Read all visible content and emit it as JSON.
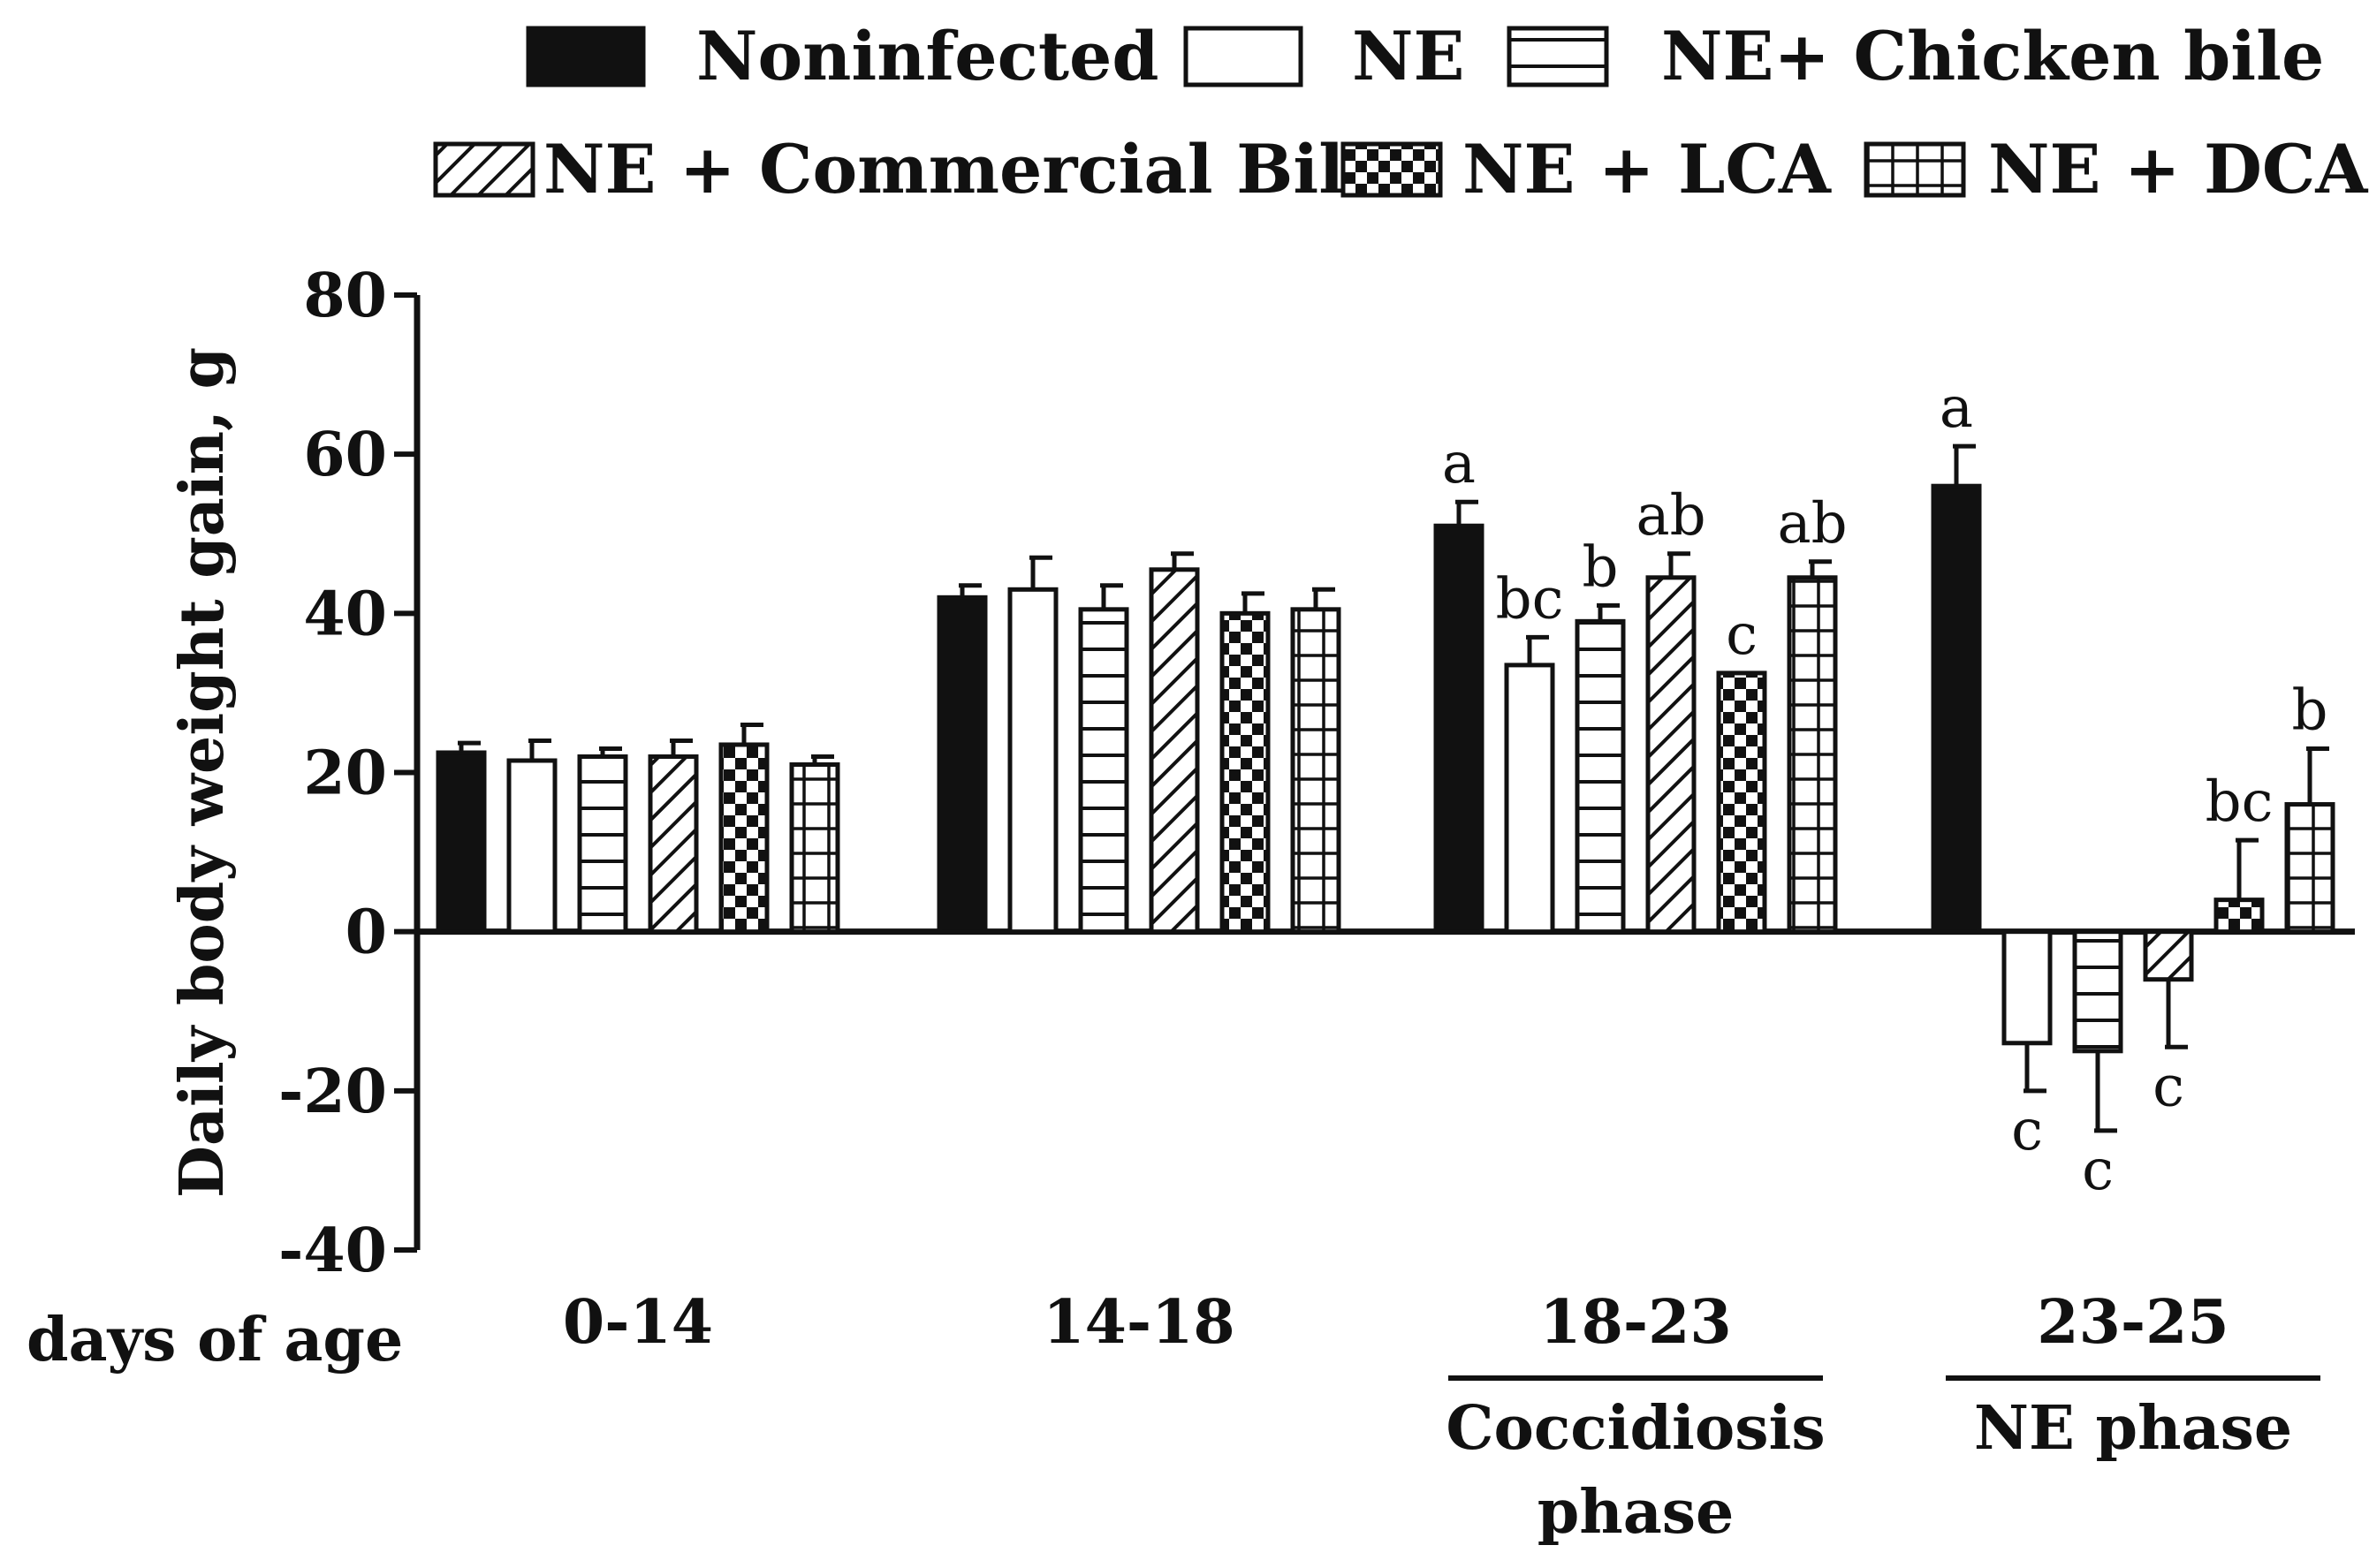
{
  "chart_data": {
    "type": "bar",
    "ylabel": "Daily body weight gain, g",
    "xaxis_title": "days of age",
    "ylim": [
      -40,
      80
    ],
    "yticks": [
      -40,
      -20,
      0,
      20,
      40,
      60,
      80
    ],
    "grid": false,
    "legend_position": "top",
    "categories": [
      "0-14",
      "14-18",
      "18-23",
      "23-25"
    ],
    "phase_labels": [
      "",
      "",
      "Coccidiosis phase",
      "NE phase"
    ],
    "series": [
      {
        "name": "Noninfected",
        "pattern": "solid",
        "values": [
          22.5,
          42,
          51,
          56
        ],
        "errors": [
          1.2,
          1.5,
          3,
          5
        ],
        "sig": [
          "",
          "",
          "a",
          "a"
        ]
      },
      {
        "name": "NE",
        "pattern": "empty",
        "values": [
          21.5,
          43,
          33.5,
          -14
        ],
        "errors": [
          2.5,
          4,
          3.5,
          6
        ],
        "sig": [
          "",
          "",
          "bc",
          "c"
        ]
      },
      {
        "name": "NE+ Chicken bile",
        "pattern": "hlines",
        "values": [
          22,
          40.5,
          39,
          -15
        ],
        "errors": [
          1,
          3,
          2,
          10
        ],
        "sig": [
          "",
          "",
          "b",
          "c"
        ]
      },
      {
        "name": "NE + Commercial Bile",
        "pattern": "diag",
        "values": [
          22,
          45.5,
          44.5,
          -6
        ],
        "errors": [
          2,
          2,
          3,
          8.5
        ],
        "sig": [
          "",
          "",
          "ab",
          "c"
        ]
      },
      {
        "name": "NE + LCA",
        "pattern": "checker",
        "values": [
          23.5,
          40,
          32.5,
          4
        ],
        "errors": [
          2.5,
          2.5,
          0,
          7.5
        ],
        "sig": [
          "",
          "",
          "c",
          "bc"
        ]
      },
      {
        "name": "NE + DCA",
        "pattern": "grid",
        "values": [
          21,
          40.5,
          44.5,
          16
        ],
        "errors": [
          1,
          2.5,
          2,
          7
        ],
        "sig": [
          "",
          "",
          "ab",
          "b"
        ]
      }
    ]
  },
  "colors": {
    "bar_fill": "#111111",
    "bar_stroke": "#111111",
    "background": "#ffffff"
  }
}
